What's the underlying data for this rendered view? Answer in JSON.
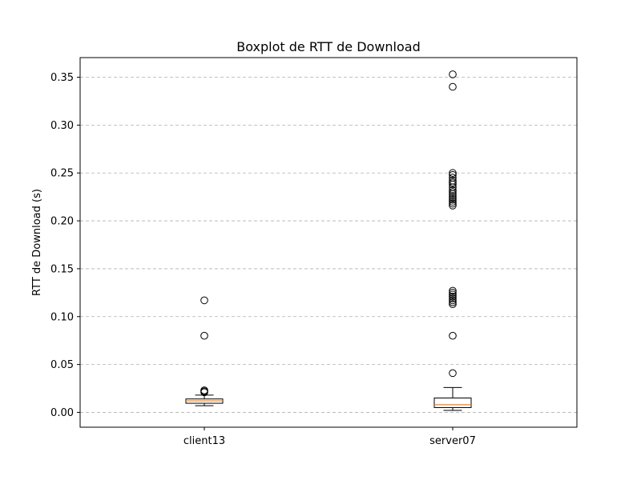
{
  "chart_data": {
    "type": "box",
    "title": "Boxplot de RTT de Download",
    "xlabel": "",
    "ylabel": "RTT de Download (s)",
    "ylim": [
      -0.0155,
      0.3705
    ],
    "y_ticks": [
      0.0,
      0.05,
      0.1,
      0.15,
      0.2,
      0.25,
      0.3,
      0.35
    ],
    "y_tick_labels": [
      "0.00",
      "0.05",
      "0.10",
      "0.15",
      "0.20",
      "0.25",
      "0.30",
      "0.35"
    ],
    "grid": "horizontal-dashed",
    "colors": {
      "box": "#000000",
      "median": "#ff7f0e",
      "grid": "#b0b0b0"
    },
    "categories": [
      "client13",
      "server07"
    ],
    "boxes": [
      {
        "name": "client13",
        "whisker_low": 0.007,
        "q1": 0.0095,
        "median": 0.012,
        "q3": 0.014,
        "whisker_high": 0.018,
        "outliers": [
          0.021,
          0.022,
          0.023,
          0.08,
          0.117
        ]
      },
      {
        "name": "server07",
        "whisker_low": 0.002,
        "q1": 0.005,
        "median": 0.008,
        "q3": 0.015,
        "whisker_high": 0.026,
        "outliers": [
          0.041,
          0.08,
          0.113,
          0.115,
          0.117,
          0.119,
          0.121,
          0.123,
          0.125,
          0.127,
          0.216,
          0.218,
          0.22,
          0.222,
          0.224,
          0.226,
          0.228,
          0.23,
          0.232,
          0.235,
          0.238,
          0.24,
          0.242,
          0.245,
          0.248,
          0.25,
          0.34,
          0.353
        ]
      }
    ]
  }
}
